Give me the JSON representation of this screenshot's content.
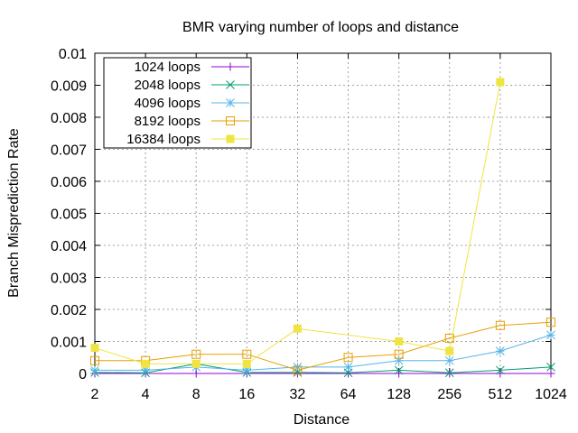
{
  "chart_data": {
    "type": "line",
    "title": "BMR varying number of loops and distance",
    "xlabel": "Distance",
    "ylabel": "Branch Misprediction Rate",
    "x_scale": "log2",
    "categories": [
      "2",
      "4",
      "8",
      "16",
      "32",
      "64",
      "128",
      "256",
      "512",
      "1024"
    ],
    "ylim": [
      0,
      0.01
    ],
    "yticks": [
      "0",
      "0.001",
      "0.002",
      "0.003",
      "0.004",
      "0.005",
      "0.006",
      "0.007",
      "0.008",
      "0.009",
      "0.01"
    ],
    "grid": true,
    "legend_position": "top-left",
    "series": [
      {
        "name": "1024 loops",
        "color": "#9400d3",
        "marker": "plus",
        "x": [
          2,
          4,
          8,
          16,
          32,
          64,
          128,
          256,
          512,
          1024
        ],
        "values": [
          0,
          0,
          0,
          0,
          0,
          0,
          0,
          0,
          0,
          0
        ]
      },
      {
        "name": "2048 loops",
        "color": "#009e73",
        "marker": "cross",
        "x": [
          2,
          4,
          8,
          16,
          32,
          64,
          128,
          256,
          512,
          1024
        ],
        "values": [
          3e-05,
          2e-05,
          0.0003,
          3e-05,
          3e-05,
          2e-05,
          0.0001,
          2e-05,
          0.0001,
          0.0002
        ]
      },
      {
        "name": "4096 loops",
        "color": "#56b4e9",
        "marker": "star",
        "x": [
          2,
          4,
          8,
          16,
          32,
          64,
          128,
          256,
          512,
          1024
        ],
        "values": [
          0.0001,
          0.0001,
          0.0002,
          0.0001,
          0.0002,
          0.0002,
          0.0004,
          0.0004,
          0.0007,
          0.0012
        ]
      },
      {
        "name": "8192 loops",
        "color": "#e69f00",
        "marker": "square-open",
        "x": [
          2,
          4,
          8,
          16,
          32,
          64,
          128,
          256,
          512,
          1024
        ],
        "values": [
          0.0004,
          0.0004,
          0.0006,
          0.0006,
          0.0001,
          0.0005,
          0.0006,
          0.0011,
          0.0015,
          0.0016
        ]
      },
      {
        "name": "16384 loops",
        "color": "#f0e442",
        "marker": "square-filled",
        "x": [
          2,
          4,
          8,
          16,
          32,
          128,
          256,
          512
        ],
        "values": [
          0.0008,
          0.0003,
          0.0003,
          0.0003,
          0.0014,
          0.001,
          0.0007,
          0.0091
        ]
      }
    ]
  }
}
